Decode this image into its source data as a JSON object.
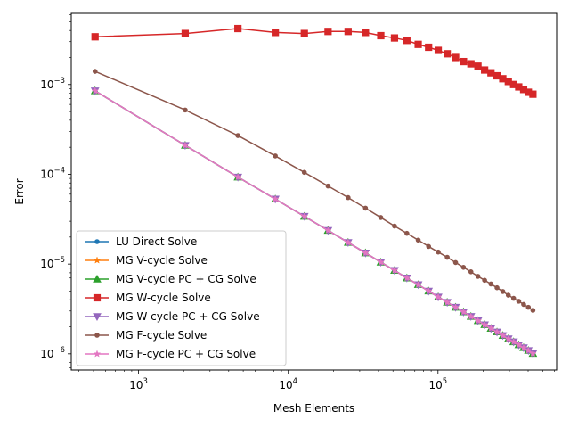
{
  "chart_data": {
    "type": "line",
    "title": "",
    "xlabel": "Mesh Elements",
    "ylabel": "Error",
    "xscale": "log",
    "yscale": "log",
    "xlim": [
      355,
      620000
    ],
    "ylim": [
      6.6e-07,
      0.0062
    ],
    "grid": false,
    "legend_position": "lower-left",
    "xticks": [
      {
        "value": 1000,
        "base": "10",
        "exp": "3"
      },
      {
        "value": 10000,
        "base": "10",
        "exp": "4"
      },
      {
        "value": 100000,
        "base": "10",
        "exp": "5"
      }
    ],
    "yticks": [
      {
        "value": 1e-06,
        "base": "10",
        "exp": "−6"
      },
      {
        "value": 1e-05,
        "base": "10",
        "exp": "−5"
      },
      {
        "value": 0.0001,
        "base": "10",
        "exp": "−4"
      },
      {
        "value": 0.001,
        "base": "10",
        "exp": "−3"
      }
    ],
    "x": [
      512,
      2048,
      4608,
      8192,
      12800,
      18432,
      25088,
      32768,
      41472,
      51200,
      61952,
      73728,
      86528,
      100352,
      115200,
      131072,
      147968,
      165888,
      184832,
      204800,
      225792,
      247808,
      270848,
      294912,
      320000,
      346112,
      373248,
      401408,
      430592
    ],
    "series": [
      {
        "name": "LU Direct Solve",
        "color": "#1f77b4",
        "marker": "circle",
        "values": [
          0.00085,
          0.00021,
          9.3e-05,
          5.3e-05,
          3.4e-05,
          2.37e-05,
          1.74e-05,
          1.33e-05,
          1.05e-05,
          8.5e-06,
          7e-06,
          5.9e-06,
          5e-06,
          4.3e-06,
          3.75e-06,
          3.3e-06,
          2.93e-06,
          2.61e-06,
          2.34e-06,
          2.11e-06,
          1.92e-06,
          1.75e-06,
          1.6e-06,
          1.47e-06,
          1.36e-06,
          1.26e-06,
          1.17e-06,
          1.09e-06,
          1.01e-06
        ]
      },
      {
        "name": "MG V-cycle Solve",
        "color": "#ff7f0e",
        "marker": "star",
        "values": [
          0.00085,
          0.00021,
          9.3e-05,
          5.3e-05,
          3.4e-05,
          2.37e-05,
          1.74e-05,
          1.33e-05,
          1.05e-05,
          8.5e-06,
          7e-06,
          5.9e-06,
          5e-06,
          4.3e-06,
          3.75e-06,
          3.3e-06,
          2.93e-06,
          2.61e-06,
          2.34e-06,
          2.11e-06,
          1.92e-06,
          1.75e-06,
          1.6e-06,
          1.47e-06,
          1.36e-06,
          1.26e-06,
          1.17e-06,
          1.09e-06,
          1.01e-06
        ]
      },
      {
        "name": "MG V-cycle PC + CG Solve",
        "color": "#2ca02c",
        "marker": "triangle-up",
        "values": [
          0.00085,
          0.00021,
          9.3e-05,
          5.3e-05,
          3.4e-05,
          2.37e-05,
          1.74e-05,
          1.33e-05,
          1.05e-05,
          8.5e-06,
          7e-06,
          5.9e-06,
          5e-06,
          4.3e-06,
          3.75e-06,
          3.3e-06,
          2.93e-06,
          2.61e-06,
          2.34e-06,
          2.11e-06,
          1.92e-06,
          1.75e-06,
          1.6e-06,
          1.47e-06,
          1.36e-06,
          1.26e-06,
          1.17e-06,
          1.09e-06,
          1.01e-06
        ]
      },
      {
        "name": "MG W-cycle Solve",
        "color": "#d62728",
        "marker": "square",
        "values": [
          0.0034,
          0.0037,
          0.0042,
          0.0038,
          0.0037,
          0.0039,
          0.0039,
          0.0038,
          0.0035,
          0.0033,
          0.0031,
          0.0028,
          0.0026,
          0.0024,
          0.0022,
          0.002,
          0.0018,
          0.0017,
          0.0016,
          0.00145,
          0.00135,
          0.00125,
          0.00116,
          0.00108,
          0.001,
          0.00094,
          0.00088,
          0.00082,
          0.00078
        ]
      },
      {
        "name": "MG W-cycle PC + CG Solve",
        "color": "#9467bd",
        "marker": "triangle-down",
        "values": [
          0.00085,
          0.00021,
          9.3e-05,
          5.3e-05,
          3.4e-05,
          2.37e-05,
          1.74e-05,
          1.33e-05,
          1.05e-05,
          8.5e-06,
          7e-06,
          5.9e-06,
          5e-06,
          4.3e-06,
          3.75e-06,
          3.3e-06,
          2.93e-06,
          2.61e-06,
          2.34e-06,
          2.11e-06,
          1.92e-06,
          1.75e-06,
          1.6e-06,
          1.47e-06,
          1.36e-06,
          1.26e-06,
          1.17e-06,
          1.09e-06,
          1.01e-06
        ]
      },
      {
        "name": "MG F-cycle Solve",
        "color": "#8c564b",
        "marker": "circle",
        "values": [
          0.0014,
          0.00052,
          0.00027,
          0.00016,
          0.000105,
          7.4e-05,
          5.5e-05,
          4.2e-05,
          3.3e-05,
          2.65e-05,
          2.2e-05,
          1.85e-05,
          1.57e-05,
          1.36e-05,
          1.19e-05,
          1.04e-05,
          9.2e-06,
          8.2e-06,
          7.3e-06,
          6.6e-06,
          6e-06,
          5.45e-06,
          4.95e-06,
          4.5e-06,
          4.15e-06,
          3.85e-06,
          3.55e-06,
          3.3e-06,
          3.05e-06
        ]
      },
      {
        "name": "MG F-cycle PC + CG Solve",
        "color": "#e377c2",
        "marker": "star",
        "values": [
          0.00085,
          0.00021,
          9.3e-05,
          5.3e-05,
          3.4e-05,
          2.37e-05,
          1.74e-05,
          1.33e-05,
          1.05e-05,
          8.5e-06,
          7e-06,
          5.9e-06,
          5e-06,
          4.3e-06,
          3.75e-06,
          3.3e-06,
          2.93e-06,
          2.61e-06,
          2.34e-06,
          2.11e-06,
          1.92e-06,
          1.75e-06,
          1.6e-06,
          1.47e-06,
          1.36e-06,
          1.26e-06,
          1.17e-06,
          1.09e-06,
          1.01e-06
        ]
      }
    ]
  }
}
